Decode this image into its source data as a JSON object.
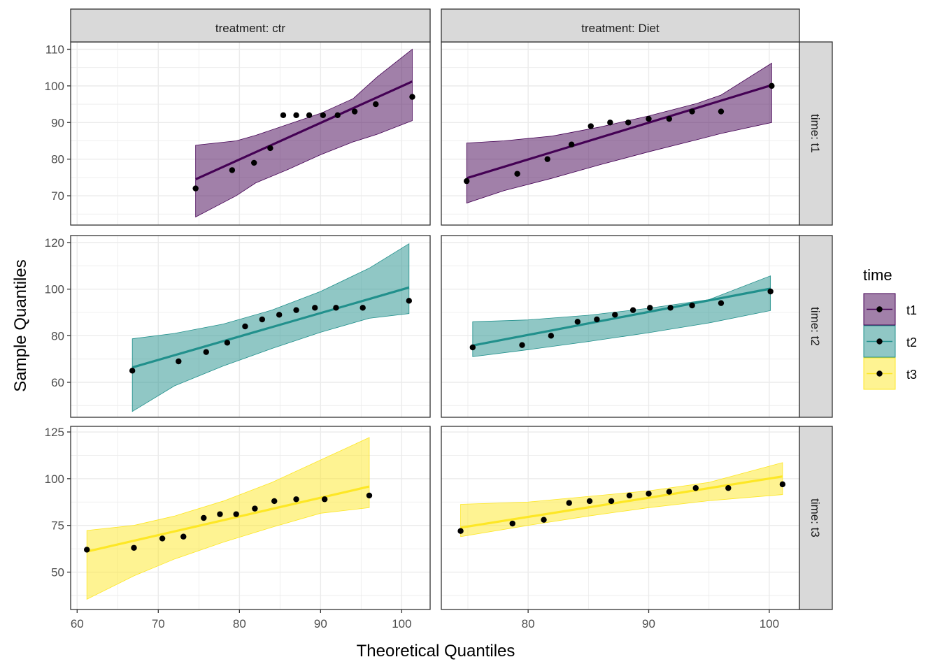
{
  "chart_data": {
    "type": "scatter",
    "subtype": "qq-plot-faceted",
    "xlabel": "Theoretical Quantiles",
    "ylabel": "Sample Quantiles",
    "legend": {
      "title": "time",
      "placement": "right",
      "entries": [
        {
          "label": "t1",
          "color": "#440154"
        },
        {
          "label": "t2",
          "color": "#21908C"
        },
        {
          "label": "t3",
          "color": "#FDE725"
        }
      ]
    },
    "columns": [
      {
        "label": "treatment: ctr",
        "xlim": [
          59.2,
          103.5
        ],
        "xticks": [
          60,
          70,
          80,
          90,
          100
        ]
      },
      {
        "label": "treatment: Diet",
        "xlim": [
          72.8,
          102.5
        ],
        "xticks": [
          80,
          90,
          100
        ]
      }
    ],
    "rows": [
      {
        "label": "time: t1",
        "series": "t1",
        "ylim": [
          62,
          112
        ],
        "yticks": [
          70,
          80,
          90,
          100,
          110
        ]
      },
      {
        "label": "time: t2",
        "series": "t2",
        "ylim": [
          45,
          123
        ],
        "yticks": [
          60,
          80,
          100,
          120
        ]
      },
      {
        "label": "time: t3",
        "series": "t3",
        "ylim": [
          30,
          128
        ],
        "yticks": [
          50,
          75,
          100,
          125
        ]
      }
    ],
    "panels": [
      {
        "row": 0,
        "col": 0,
        "points": [
          [
            74.6,
            72
          ],
          [
            79.1,
            77
          ],
          [
            81.8,
            79
          ],
          [
            83.8,
            83
          ],
          [
            85.4,
            92
          ],
          [
            87.0,
            92
          ],
          [
            88.6,
            92
          ],
          [
            90.3,
            92
          ],
          [
            92.1,
            92
          ],
          [
            94.2,
            93
          ],
          [
            96.8,
            95
          ],
          [
            101.3,
            97
          ]
        ],
        "line": [
          [
            74.6,
            74.5
          ],
          [
            101.3,
            101.2
          ]
        ],
        "band_upper": [
          [
            74.6,
            83.8
          ],
          [
            79.6,
            85
          ],
          [
            82,
            86.5
          ],
          [
            86,
            89.5
          ],
          [
            90,
            92.5
          ],
          [
            94,
            96.5
          ],
          [
            97,
            102.5
          ],
          [
            101.3,
            110
          ]
        ],
        "band_lower": [
          [
            74.6,
            64.2
          ],
          [
            79.6,
            70
          ],
          [
            82,
            73.5
          ],
          [
            86,
            77.2
          ],
          [
            90,
            81.2
          ],
          [
            94,
            84.7
          ],
          [
            97,
            86.8
          ],
          [
            101.3,
            90.5
          ]
        ]
      },
      {
        "row": 0,
        "col": 1,
        "points": [
          [
            74.9,
            74
          ],
          [
            79.1,
            76
          ],
          [
            81.6,
            80
          ],
          [
            83.6,
            84
          ],
          [
            85.2,
            89
          ],
          [
            86.8,
            90
          ],
          [
            88.3,
            90
          ],
          [
            90.0,
            91
          ],
          [
            91.7,
            91
          ],
          [
            93.6,
            93
          ],
          [
            96.0,
            93
          ],
          [
            100.2,
            100
          ]
        ],
        "line": [
          [
            74.9,
            74.8
          ],
          [
            100.2,
            100.2
          ]
        ],
        "band_upper": [
          [
            74.9,
            84.4
          ],
          [
            78,
            85
          ],
          [
            82,
            86.3
          ],
          [
            86,
            88.8
          ],
          [
            90,
            91.8
          ],
          [
            94,
            95.2
          ],
          [
            96,
            97.5
          ],
          [
            100.2,
            106.2
          ]
        ],
        "band_lower": [
          [
            74.9,
            68
          ],
          [
            78,
            71.4
          ],
          [
            82,
            74.8
          ],
          [
            86,
            78.5
          ],
          [
            90,
            82
          ],
          [
            94,
            85.3
          ],
          [
            96,
            87
          ],
          [
            100.2,
            90
          ]
        ]
      },
      {
        "row": 1,
        "col": 0,
        "points": [
          [
            66.8,
            65
          ],
          [
            72.5,
            69
          ],
          [
            75.9,
            73
          ],
          [
            78.5,
            77
          ],
          [
            80.7,
            84
          ],
          [
            82.8,
            87
          ],
          [
            84.9,
            89
          ],
          [
            87.0,
            91
          ],
          [
            89.3,
            92
          ],
          [
            91.9,
            92
          ],
          [
            95.2,
            92
          ],
          [
            100.9,
            95
          ]
        ],
        "line": [
          [
            66.8,
            66.4
          ],
          [
            100.9,
            100.7
          ]
        ],
        "band_upper": [
          [
            66.8,
            78.7
          ],
          [
            72,
            81
          ],
          [
            78,
            85
          ],
          [
            84,
            91
          ],
          [
            90,
            99
          ],
          [
            96,
            109
          ],
          [
            100.9,
            119.5
          ]
        ],
        "band_lower": [
          [
            66.8,
            47.5
          ],
          [
            72,
            58.5
          ],
          [
            78,
            67
          ],
          [
            84,
            74.5
          ],
          [
            90,
            81.5
          ],
          [
            96,
            87.5
          ],
          [
            100.9,
            89.5
          ]
        ]
      },
      {
        "row": 1,
        "col": 1,
        "points": [
          [
            75.4,
            75
          ],
          [
            79.5,
            76
          ],
          [
            81.9,
            80
          ],
          [
            84.1,
            86
          ],
          [
            85.7,
            87
          ],
          [
            87.2,
            89
          ],
          [
            88.7,
            91
          ],
          [
            90.1,
            92
          ],
          [
            91.8,
            92
          ],
          [
            93.6,
            93
          ],
          [
            96.0,
            94
          ],
          [
            100.1,
            99
          ]
        ],
        "line": [
          [
            75.4,
            75.8
          ],
          [
            100.1,
            100.2
          ]
        ],
        "band_upper": [
          [
            75.4,
            86
          ],
          [
            80,
            86.8
          ],
          [
            85,
            88.8
          ],
          [
            90,
            91.8
          ],
          [
            95,
            95.5
          ],
          [
            100.1,
            105.7
          ]
        ],
        "band_lower": [
          [
            75.4,
            71
          ],
          [
            80,
            74
          ],
          [
            85,
            77.5
          ],
          [
            90,
            81.3
          ],
          [
            95,
            85.5
          ],
          [
            100.1,
            90.8
          ]
        ]
      },
      {
        "row": 2,
        "col": 0,
        "points": [
          [
            61.2,
            62
          ],
          [
            67.0,
            63
          ],
          [
            70.5,
            68
          ],
          [
            73.1,
            69
          ],
          [
            75.6,
            79
          ],
          [
            77.6,
            81
          ],
          [
            79.6,
            81
          ],
          [
            81.9,
            84
          ],
          [
            84.3,
            88
          ],
          [
            87.0,
            89
          ],
          [
            90.5,
            89
          ],
          [
            96.0,
            91
          ]
        ],
        "line": [
          [
            61.2,
            61
          ],
          [
            96.0,
            95.8
          ]
        ],
        "band_upper": [
          [
            61.2,
            72.3
          ],
          [
            67,
            75
          ],
          [
            72,
            80
          ],
          [
            78,
            88
          ],
          [
            84,
            98
          ],
          [
            90,
            110
          ],
          [
            96.0,
            122
          ]
        ],
        "band_lower": [
          [
            61.2,
            35.5
          ],
          [
            67,
            48
          ],
          [
            72,
            57
          ],
          [
            78,
            66
          ],
          [
            84,
            74
          ],
          [
            90,
            81.5
          ],
          [
            96.0,
            84.5
          ]
        ]
      },
      {
        "row": 2,
        "col": 1,
        "points": [
          [
            74.4,
            72
          ],
          [
            78.7,
            76
          ],
          [
            81.3,
            78
          ],
          [
            83.4,
            87
          ],
          [
            85.1,
            88
          ],
          [
            86.9,
            88
          ],
          [
            88.4,
            91
          ],
          [
            90.0,
            92
          ],
          [
            91.7,
            93
          ],
          [
            93.9,
            95
          ],
          [
            96.6,
            95
          ],
          [
            101.1,
            97
          ]
        ],
        "line": [
          [
            74.4,
            73.8
          ],
          [
            101.1,
            101.2
          ]
        ],
        "band_upper": [
          [
            74.4,
            86.3
          ],
          [
            80,
            87.5
          ],
          [
            85,
            90.5
          ],
          [
            90,
            93.5
          ],
          [
            95,
            98
          ],
          [
            101.1,
            108.6
          ]
        ],
        "band_lower": [
          [
            74.4,
            69
          ],
          [
            80,
            75
          ],
          [
            85,
            80
          ],
          [
            90,
            84.5
          ],
          [
            95,
            88.2
          ],
          [
            101.1,
            91.5
          ]
        ]
      }
    ]
  }
}
